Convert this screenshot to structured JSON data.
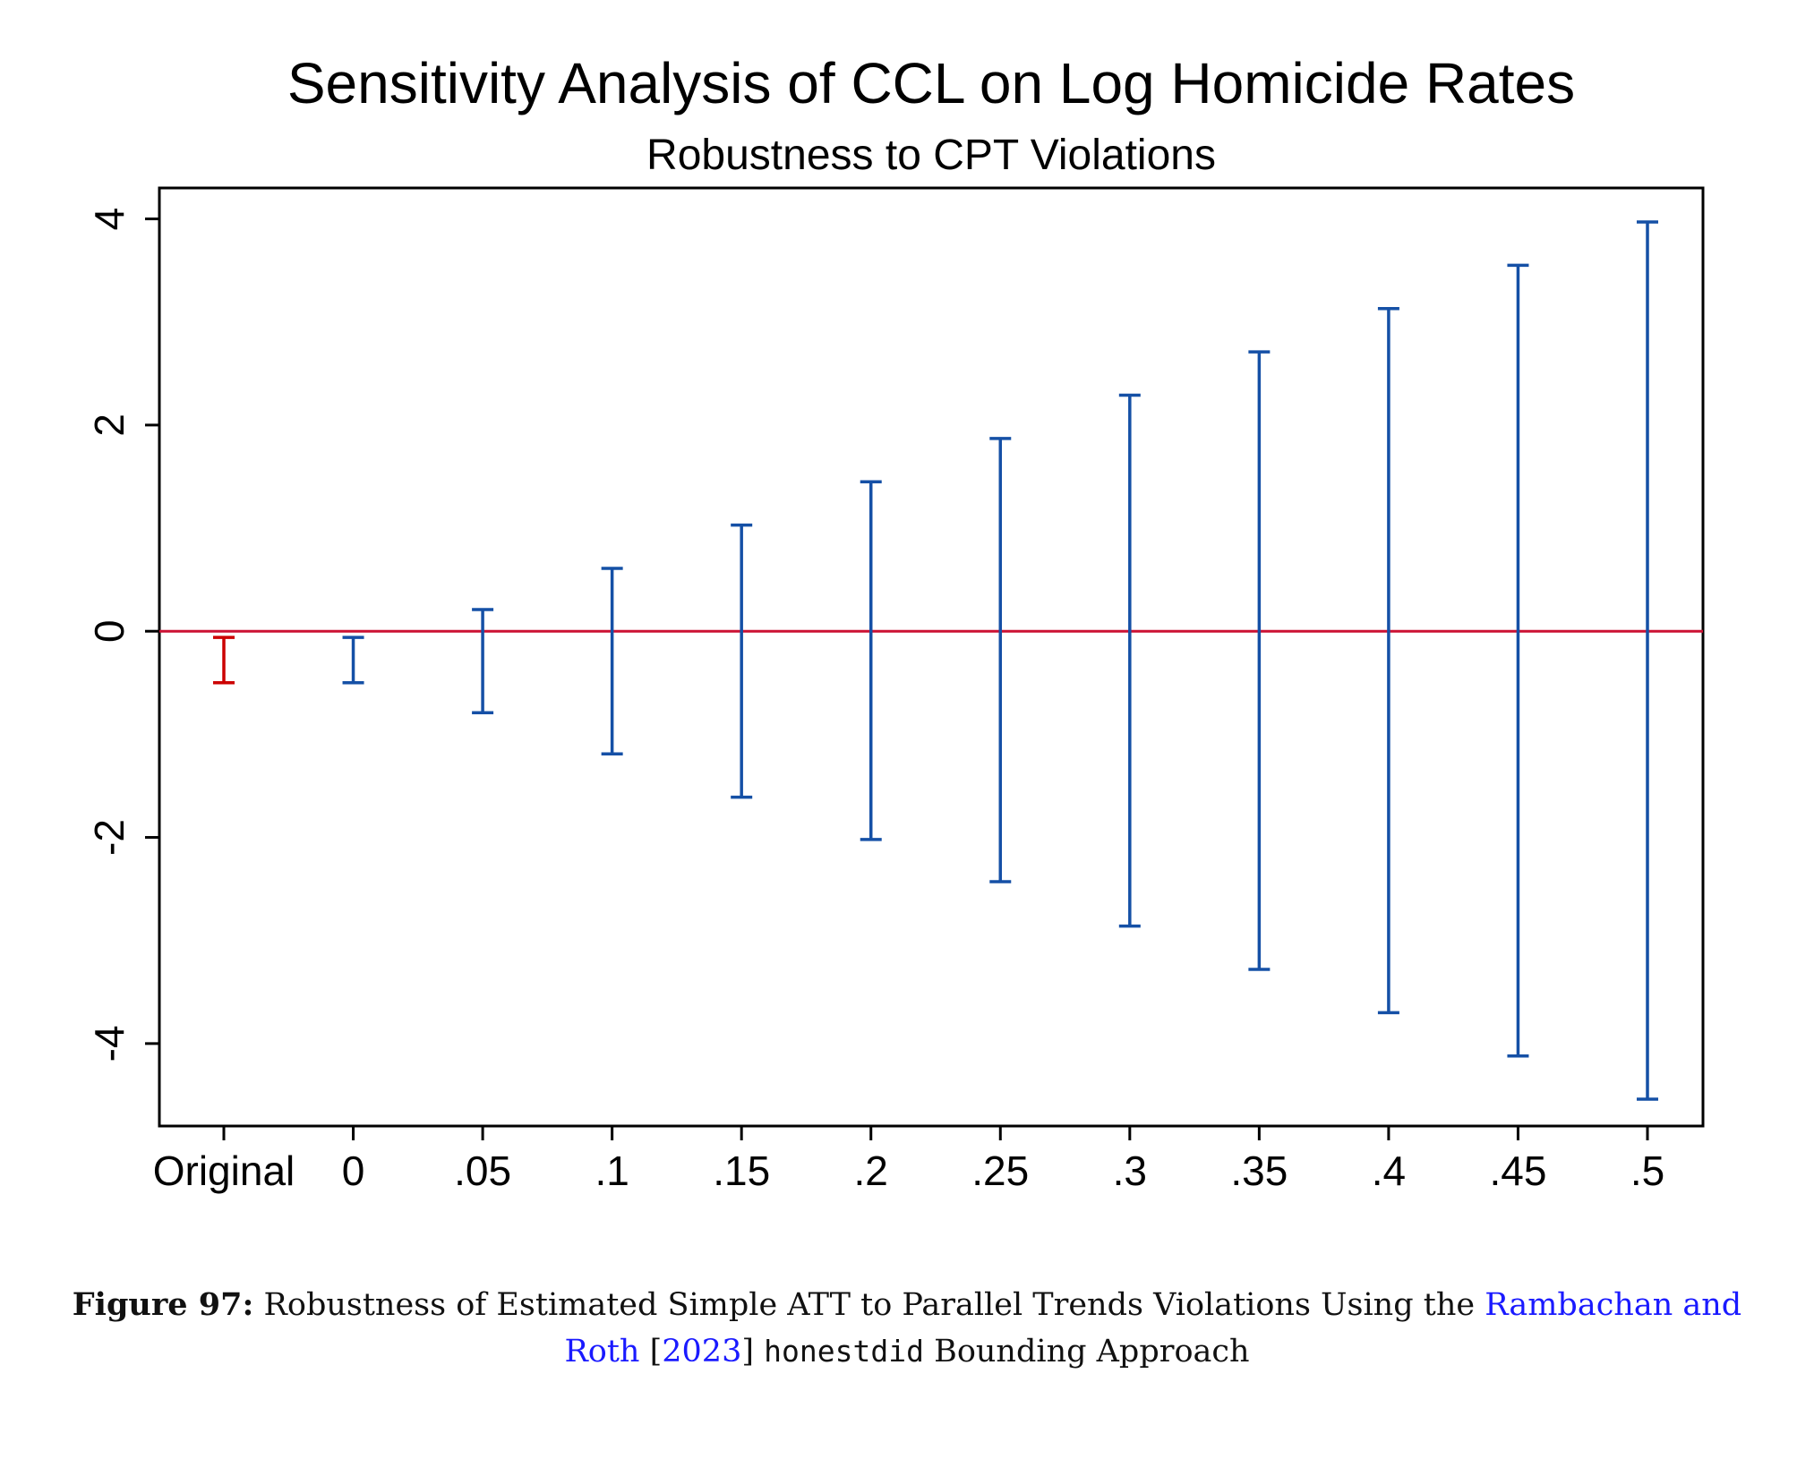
{
  "chart_data": {
    "type": "errorbar",
    "title": "Sensitivity Analysis of CCL on Log Homicide Rates",
    "subtitle": "Robustness to CPT Violations",
    "categories": [
      "Original",
      "0",
      ".05",
      ".1",
      ".15",
      ".2",
      ".25",
      ".3",
      ".35",
      ".4",
      ".45",
      ".5"
    ],
    "intervals": [
      {
        "lower": -0.5,
        "upper": -0.06
      },
      {
        "lower": -0.5,
        "upper": -0.06
      },
      {
        "lower": -0.79,
        "upper": 0.21
      },
      {
        "lower": -1.19,
        "upper": 0.61
      },
      {
        "lower": -1.61,
        "upper": 1.03
      },
      {
        "lower": -2.02,
        "upper": 1.45
      },
      {
        "lower": -2.43,
        "upper": 1.87
      },
      {
        "lower": -2.86,
        "upper": 2.29
      },
      {
        "lower": -3.28,
        "upper": 2.71
      },
      {
        "lower": -3.7,
        "upper": 3.13
      },
      {
        "lower": -4.12,
        "upper": 3.55
      },
      {
        "lower": -4.54,
        "upper": 3.97
      }
    ],
    "interval_colors": [
      "#cc0000",
      "#1550a6",
      "#1550a6",
      "#1550a6",
      "#1550a6",
      "#1550a6",
      "#1550a6",
      "#1550a6",
      "#1550a6",
      "#1550a6",
      "#1550a6",
      "#1550a6"
    ],
    "reference_line": {
      "y": 0,
      "color": "#cc1133"
    },
    "yticks": [
      4,
      2,
      0,
      -2,
      -4
    ],
    "ytick_labels": [
      "4",
      "2",
      "0",
      "-2",
      "-4"
    ],
    "ylim": [
      -4.8,
      4.3
    ],
    "xlabel": "",
    "ylabel": "",
    "grid": false,
    "legend": "none"
  },
  "caption": {
    "label": "Figure 97:",
    "text_before": "Robustness of Estimated Simple ATT to Parallel Trends Violations Using the",
    "citation_author": "Rambachan and Roth",
    "citation_bracket_open": "[",
    "citation_year": "2023",
    "citation_bracket_close": "]",
    "code_word": "honestdid",
    "text_after": "Bounding Approach"
  }
}
